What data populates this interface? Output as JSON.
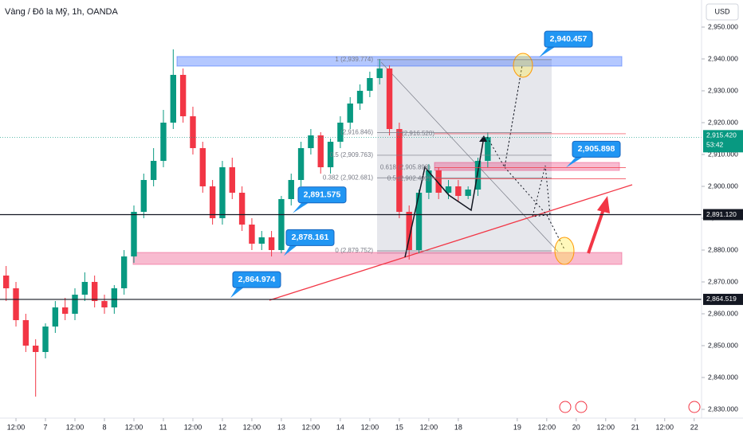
{
  "chart_data": {
    "type": "candlestick",
    "title": "Vàng / Đô la Mỹ, 1h, OANDA",
    "currency": "USD",
    "up_color": "#089981",
    "down_color": "#f23645",
    "x": [
      -4,
      0,
      4,
      8,
      12,
      16,
      20,
      24,
      28,
      32,
      36,
      40,
      44,
      48,
      52,
      56,
      60,
      64,
      68,
      72,
      76,
      80,
      84,
      88,
      92,
      96,
      100,
      104,
      108,
      112,
      116,
      120,
      124,
      128,
      132,
      136,
      140,
      144,
      148,
      152,
      156,
      160,
      164,
      168,
      172,
      176,
      180,
      184,
      188,
      192
    ],
    "open": [
      2872,
      2868,
      2858,
      2850,
      2848,
      2856,
      2862,
      2860,
      2866,
      2870,
      2864,
      2862,
      2868,
      2878,
      2892,
      2902,
      2908,
      2920,
      2935,
      2922,
      2912,
      2900,
      2890,
      2906,
      2898,
      2888,
      2882,
      2884,
      2880,
      2896,
      2902,
      2912,
      2916,
      2906,
      2914,
      2920,
      2926,
      2930,
      2934,
      2937,
      2918,
      2892,
      2880,
      2898,
      2905,
      2898,
      2900,
      2897,
      2899,
      2908
    ],
    "high": [
      2875,
      2870,
      2860,
      2852,
      2857,
      2864,
      2865,
      2868,
      2873,
      2872,
      2866,
      2869,
      2880,
      2894,
      2904,
      2912,
      2924,
      2943,
      2937,
      2925,
      2914,
      2902,
      2908,
      2909,
      2900,
      2890,
      2886,
      2886,
      2897,
      2904,
      2914,
      2918,
      2917,
      2915,
      2922,
      2928,
      2932,
      2936,
      2940,
      2938,
      2920,
      2894,
      2899,
      2907,
      2906,
      2902,
      2902,
      2900,
      2909,
      2917
    ],
    "low": [
      2864,
      2856,
      2848,
      2834,
      2846,
      2854,
      2858,
      2858,
      2864,
      2862,
      2860,
      2860,
      2866,
      2876,
      2890,
      2900,
      2906,
      2918,
      2920,
      2910,
      2898,
      2888,
      2888,
      2896,
      2886,
      2880,
      2880,
      2878,
      2879,
      2894,
      2900,
      2910,
      2904,
      2904,
      2912,
      2918,
      2924,
      2928,
      2932,
      2916,
      2890,
      2877,
      2879,
      2896,
      2896,
      2896,
      2895,
      2896,
      2897,
      2906
    ],
    "close": [
      2868,
      2858,
      2850,
      2848,
      2856,
      2862,
      2860,
      2866,
      2870,
      2864,
      2862,
      2868,
      2878,
      2892,
      2902,
      2908,
      2920,
      2935,
      2922,
      2912,
      2900,
      2890,
      2906,
      2898,
      2888,
      2882,
      2884,
      2880,
      2896,
      2902,
      2912,
      2916,
      2906,
      2914,
      2920,
      2926,
      2930,
      2934,
      2937,
      2918,
      2892,
      2880,
      2898,
      2905,
      2898,
      2900,
      2897,
      2899,
      2908,
      2915.42
    ],
    "xlim": [
      -6.5,
      279
    ],
    "ylim": [
      2827.25,
      2958.5
    ],
    "xticks": [
      {
        "value": 0,
        "label": "12:00"
      },
      {
        "value": 12,
        "label": "7"
      },
      {
        "value": 24,
        "label": "12:00"
      },
      {
        "value": 36,
        "label": "8"
      },
      {
        "value": 48,
        "label": "12:00"
      },
      {
        "value": 60,
        "label": "11"
      },
      {
        "value": 72,
        "label": "12:00"
      },
      {
        "value": 84,
        "label": "12"
      },
      {
        "value": 96,
        "label": "12:00"
      },
      {
        "value": 108,
        "label": "13"
      },
      {
        "value": 120,
        "label": "12:00"
      },
      {
        "value": 132,
        "label": "14"
      },
      {
        "value": 144,
        "label": "12:00"
      },
      {
        "value": 156,
        "label": "15"
      },
      {
        "value": 168,
        "label": "12:00"
      },
      {
        "value": 180,
        "label": "18"
      },
      {
        "value": 204,
        "label": "19"
      },
      {
        "value": 216,
        "label": "12:00"
      },
      {
        "value": 228,
        "label": "20"
      },
      {
        "value": 240,
        "label": "12:00"
      },
      {
        "value": 252,
        "label": "21"
      },
      {
        "value": 264,
        "label": "12:00"
      },
      {
        "value": 276,
        "label": "22"
      }
    ],
    "yticks": [
      {
        "value": 2950,
        "label": "2,950.000"
      },
      {
        "value": 2940,
        "label": "2,940.000"
      },
      {
        "value": 2930,
        "label": "2,930.000"
      },
      {
        "value": 2920,
        "label": "2,920.000"
      },
      {
        "value": 2910,
        "label": "2,910.000"
      },
      {
        "value": 2900,
        "label": "2,900.000"
      },
      {
        "value": 2890,
        "label": "2,890.000"
      },
      {
        "value": 2880,
        "label": "2,880.000"
      },
      {
        "value": 2870,
        "label": "2,870.000"
      },
      {
        "value": 2860,
        "label": "2,860.000"
      },
      {
        "value": 2850,
        "label": "2,850.000"
      },
      {
        "value": 2840,
        "label": "2,840.000"
      },
      {
        "value": 2830,
        "label": "2,830.000"
      }
    ],
    "current_price": {
      "value": 2915.42,
      "label": "2,915.420",
      "countdown": "53:42"
    },
    "price_lines": [
      {
        "value": 2891.12,
        "label": "2,891.120"
      },
      {
        "value": 2864.519,
        "label": "2,864.519"
      }
    ],
    "annotations": [
      {
        "value": 2940.457,
        "label": "2,940.457"
      },
      {
        "value": 2905.898,
        "label": "2,905.898"
      },
      {
        "value": 2891.575,
        "label": "2,891.575"
      },
      {
        "value": 2878.161,
        "label": "2,878.161"
      },
      {
        "value": 2864.974,
        "label": "2,864.974"
      }
    ],
    "fib_levels": [
      {
        "value": 2939.774,
        "label": "1 (2,939.774)"
      },
      {
        "value": 2916.846,
        "label": "(2,916.846)"
      },
      {
        "value": 2909.763,
        "label": "0.5 (2,909.763)"
      },
      {
        "value": 2902.681,
        "label": "0.382 (2,902.681)"
      },
      {
        "value": 2879.752,
        "label": "0 (2,879.752)"
      },
      {
        "value": 2916.52,
        "label": "1 (2,916.520)"
      },
      {
        "value": 2905.898,
        "label": "0.618 (2,905.898)"
      },
      {
        "value": 2902.402,
        "label": "0.5 (2,902.402)"
      }
    ]
  }
}
